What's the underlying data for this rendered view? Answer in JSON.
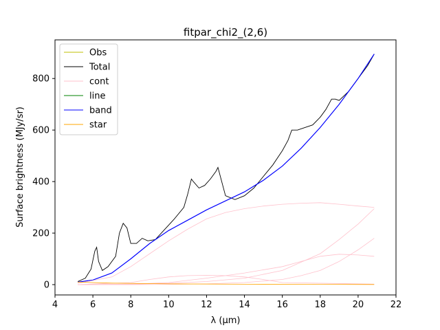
{
  "chart_data": {
    "type": "line",
    "title": "fitpar_chi2_(2,6)",
    "xlabel": "λ (μm)",
    "ylabel": "Surface brightness (MJy/sr)",
    "xlim": [
      4,
      22
    ],
    "ylim": [
      -40,
      950
    ],
    "xticks": [
      4,
      6,
      8,
      10,
      12,
      14,
      16,
      18,
      20,
      22
    ],
    "yticks": [
      0,
      200,
      400,
      600,
      800
    ],
    "grid": false,
    "legend_position": "top-left",
    "legend": [
      {
        "label": "Obs",
        "color": "#bfbf00"
      },
      {
        "label": "Total",
        "color": "#000000"
      },
      {
        "label": "cont",
        "color": "#ffc0cb"
      },
      {
        "label": "line",
        "color": "#008000"
      },
      {
        "label": "band",
        "color": "#0000ff"
      },
      {
        "label": "star",
        "color": "#ffa500"
      }
    ],
    "series": [
      {
        "name": "Total",
        "color": "#000000",
        "x": [
          5.2,
          5.6,
          5.9,
          6.1,
          6.2,
          6.3,
          6.5,
          6.8,
          7.2,
          7.4,
          7.6,
          7.8,
          8.0,
          8.3,
          8.6,
          8.9,
          9.3,
          9.8,
          10.3,
          10.8,
          11.0,
          11.2,
          11.3,
          11.6,
          11.9,
          12.2,
          12.5,
          12.6,
          12.8,
          13.0,
          13.5,
          14.0,
          14.5,
          15.0,
          15.5,
          16.0,
          16.3,
          16.5,
          16.8,
          17.2,
          17.6,
          18.0,
          18.3,
          18.6,
          18.8,
          19.0,
          19.5,
          20.0,
          20.5,
          20.85
        ],
        "y": [
          12,
          25,
          60,
          130,
          145,
          90,
          55,
          70,
          110,
          200,
          238,
          220,
          160,
          160,
          180,
          170,
          175,
          215,
          255,
          300,
          350,
          410,
          400,
          375,
          385,
          410,
          440,
          455,
          400,
          345,
          330,
          345,
          375,
          420,
          465,
          520,
          560,
          600,
          600,
          610,
          620,
          650,
          680,
          720,
          720,
          715,
          750,
          800,
          850,
          895
        ]
      },
      {
        "name": "band",
        "color": "#0000ff",
        "x": [
          5.2,
          6,
          7,
          8,
          9,
          10,
          11,
          12,
          13,
          14,
          15,
          16,
          17,
          18,
          19,
          20,
          20.85
        ],
        "y": [
          10,
          18,
          45,
          100,
          160,
          210,
          250,
          290,
          325,
          360,
          405,
          460,
          530,
          610,
          700,
          800,
          895
        ]
      },
      {
        "name": "cont",
        "color": "#ffc0cb",
        "x": [
          5.2,
          7,
          8,
          9,
          10,
          11,
          12,
          13,
          14,
          15,
          16,
          17,
          18,
          19,
          20,
          20.85
        ],
        "y": [
          5,
          30,
          70,
          120,
          170,
          215,
          255,
          280,
          295,
          305,
          312,
          316,
          318,
          312,
          305,
          300
        ]
      },
      {
        "name": "cont",
        "color": "#ffc0cb",
        "x": [
          5.2,
          8,
          10,
          12,
          14,
          16,
          18,
          19,
          20,
          20.85
        ],
        "y": [
          0,
          2,
          5,
          12,
          25,
          55,
          120,
          175,
          235,
          295
        ]
      },
      {
        "name": "cont",
        "color": "#ffc0cb",
        "x": [
          5.2,
          8,
          10,
          12,
          14,
          16,
          17,
          18,
          19,
          20,
          20.85
        ],
        "y": [
          0,
          0,
          1,
          3,
          8,
          20,
          35,
          55,
          90,
          135,
          180
        ]
      },
      {
        "name": "cont",
        "color": "#ffc0cb",
        "x": [
          5.2,
          8,
          10,
          12,
          14,
          16,
          17,
          18,
          19,
          20,
          20.85
        ],
        "y": [
          0,
          2,
          8,
          25,
          45,
          70,
          90,
          110,
          118,
          115,
          110
        ]
      },
      {
        "name": "cont",
        "color": "#ffc0cb",
        "x": [
          5.2,
          8,
          9,
          10,
          11,
          12,
          13,
          14,
          15,
          16,
          20.85
        ],
        "y": [
          0,
          8,
          20,
          30,
          35,
          36,
          35,
          30,
          20,
          8,
          2
        ]
      },
      {
        "name": "star",
        "color": "#ffa500",
        "x": [
          5.2,
          7,
          10,
          14,
          18,
          20.85
        ],
        "y": [
          10,
          6,
          3,
          1.5,
          1,
          0.5
        ]
      }
    ]
  }
}
